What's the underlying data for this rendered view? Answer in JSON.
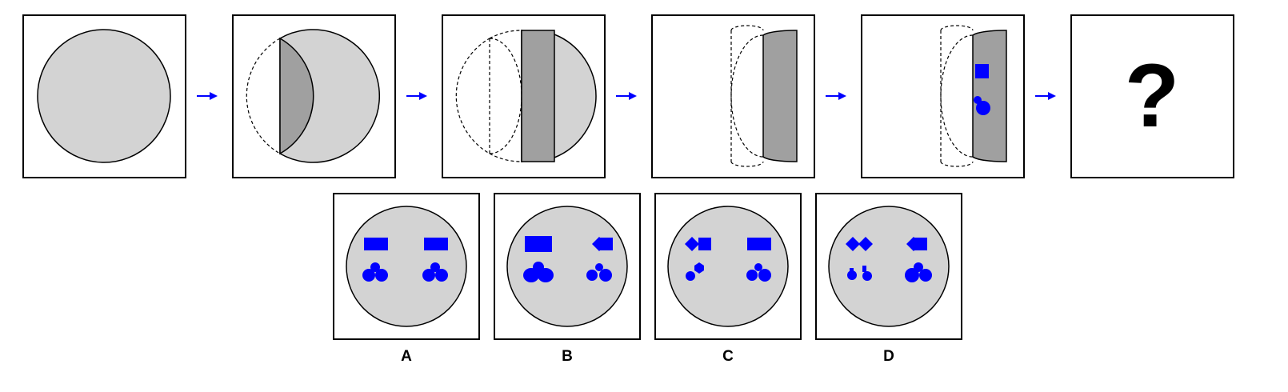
{
  "sequence": {
    "question_mark": "?"
  },
  "options": [
    {
      "label": "A"
    },
    {
      "label": "B"
    },
    {
      "label": "C"
    },
    {
      "label": "D"
    }
  ],
  "colors": {
    "paper": "#d3d3d3",
    "folded_layer": "#a0a0a0",
    "hole": "#0000ff",
    "arrow": "#0000ff",
    "outline": "#000000"
  }
}
